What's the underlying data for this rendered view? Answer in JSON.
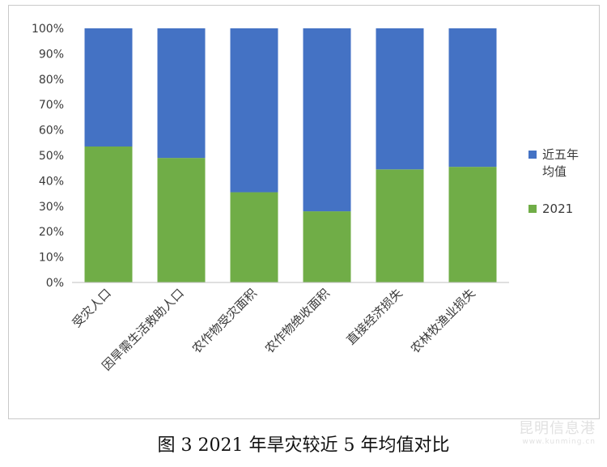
{
  "chart_data": {
    "type": "bar",
    "stacked": true,
    "percent": true,
    "categories": [
      "受灾人口",
      "因旱需生活救助人口",
      "农作物受灾面积",
      "农作物绝收面积",
      "直接经济损失",
      "农林牧渔业损失"
    ],
    "series": [
      {
        "name": "2021",
        "color": "#70ad47",
        "values": [
          53.5,
          49,
          35.5,
          28,
          44.5,
          45.5
        ]
      },
      {
        "name": "近五年均值",
        "color": "#4472c4",
        "values": [
          46.5,
          51,
          64.5,
          72,
          55.5,
          54.5
        ]
      }
    ],
    "ylim": [
      0,
      100
    ],
    "yticks": [
      "0%",
      "10%",
      "20%",
      "30%",
      "40%",
      "50%",
      "60%",
      "70%",
      "80%",
      "90%",
      "100%"
    ],
    "legend_position": "right",
    "grid": false
  },
  "legend": [
    {
      "label_line1": "近五年",
      "label_line2": "均值",
      "color": "#4472c4"
    },
    {
      "label_line1": "2021",
      "label_line2": "",
      "color": "#70ad47"
    }
  ],
  "caption": "图 3 2021 年旱灾较近 5 年均值对比",
  "watermark": {
    "main": "昆明信息港",
    "sub": "www.kunming.cn"
  }
}
